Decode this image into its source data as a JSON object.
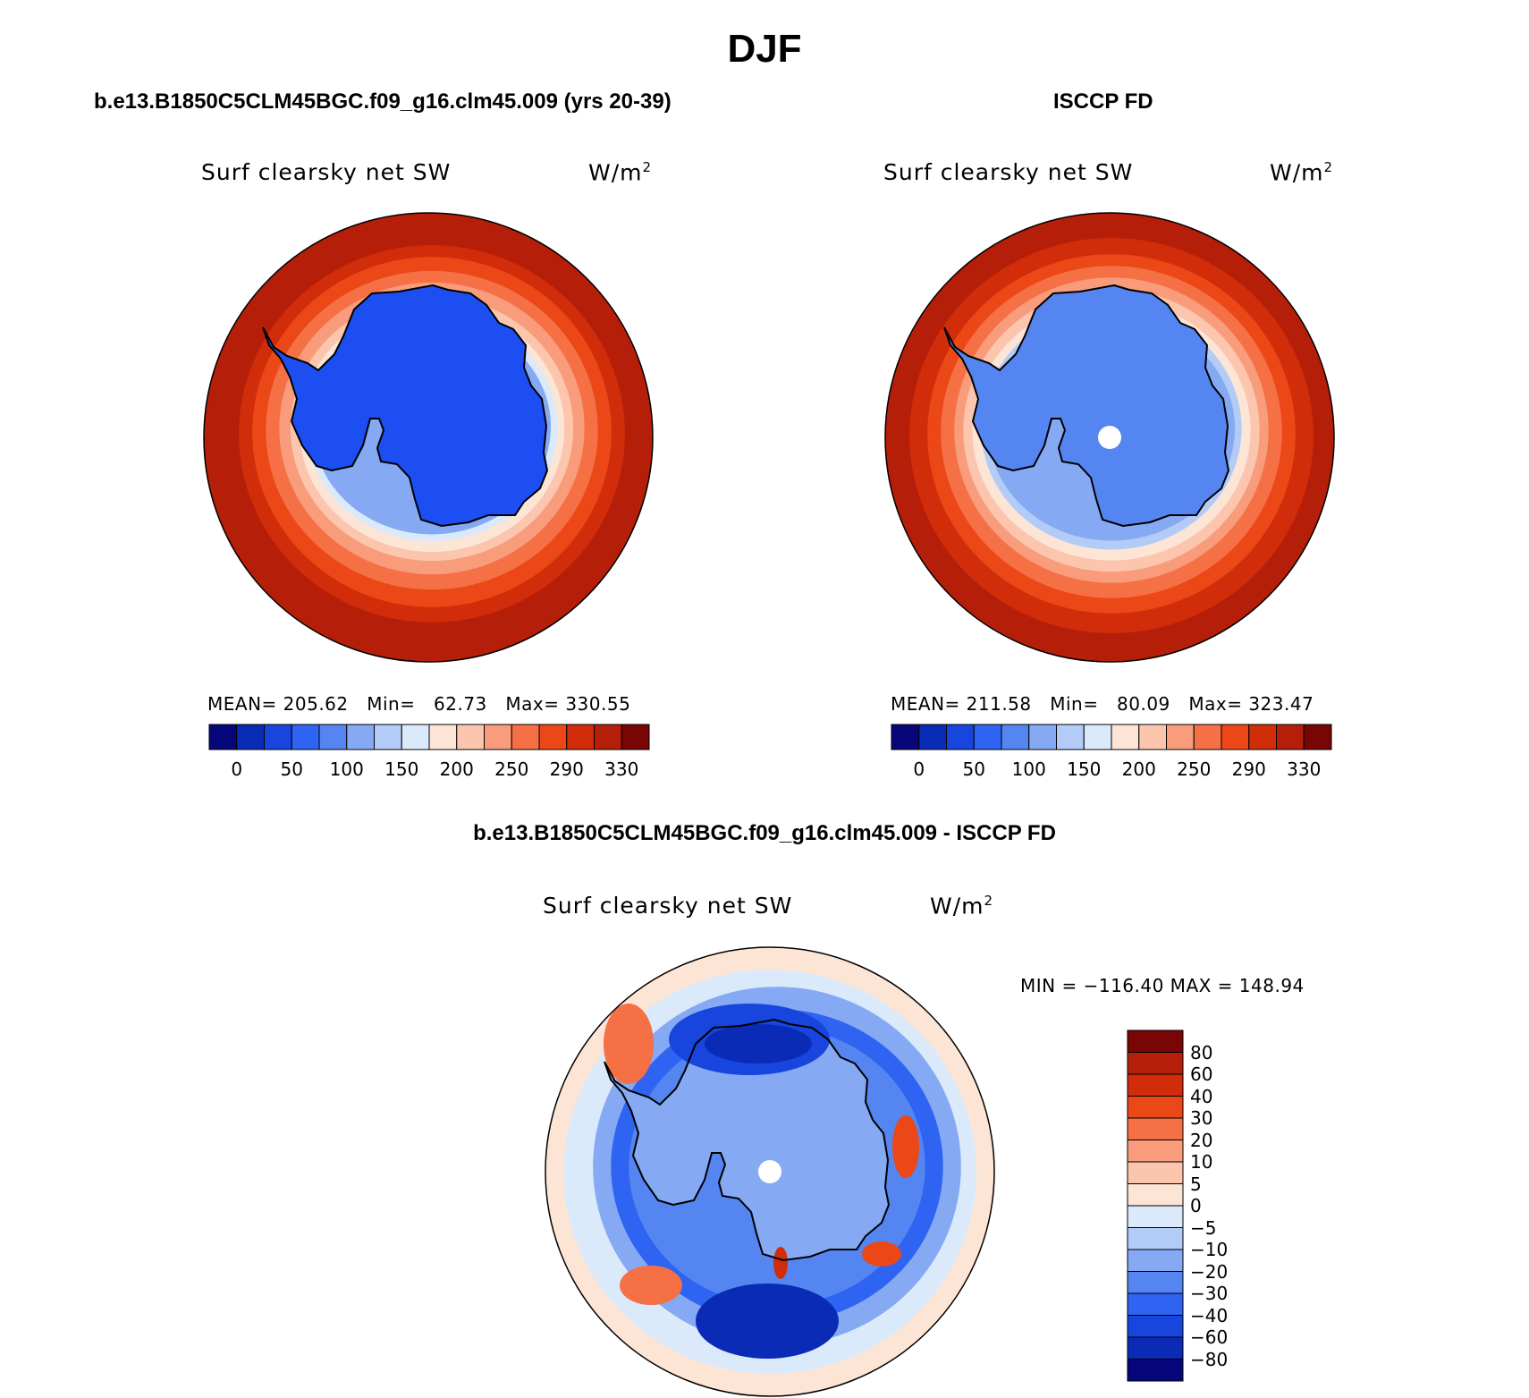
{
  "figure": {
    "title": "DJF"
  },
  "panels": [
    {
      "title": "b.e13.B1850C5CLM45BGC.f09_g16.clm45.009 (yrs 20-39)",
      "variable": "Surf clearsky net SW",
      "units": "W/m",
      "units_sup": "2",
      "stats_text": "MEAN= 205.62   Min=   62.73   Max= 330.55"
    },
    {
      "title": "ISCCP FD",
      "variable": "Surf clearsky net SW",
      "units": "W/m",
      "units_sup": "2",
      "stats_text": "MEAN= 211.58   Min=   80.09   Max= 323.47"
    },
    {
      "title": "b.e13.B1850C5CLM45BGC.f09_g16.clm45.009 - ISCCP FD",
      "variable": "Surf clearsky net SW",
      "units": "W/m",
      "units_sup": "2",
      "stats_text": "MIN = −116.40 MAX = 148.94"
    }
  ],
  "chart_data": [
    {
      "type": "heatmap",
      "projection": "south-polar-stereographic",
      "title": "b.e13.B1850C5CLM45BGC.f09_g16.clm45.009 (yrs 20-39)",
      "variable": "Surf clearsky net SW",
      "units": "W/m2",
      "mean": 205.62,
      "min": 62.73,
      "max": 330.55,
      "colorbar_ticks": [
        "0",
        "50",
        "100",
        "150",
        "200",
        "250",
        "290",
        "330"
      ],
      "colorbar_colors": [
        "#06067a",
        "#0a2bb6",
        "#1745dd",
        "#2f64f2",
        "#5585f0",
        "#86a9f4",
        "#b3cbf7",
        "#daeafb",
        "#fde5d6",
        "#fbc6ad",
        "#f89c7c",
        "#f57045",
        "#ec4716",
        "#d22d0a",
        "#b51f09",
        "#7a0505"
      ]
    },
    {
      "type": "heatmap",
      "projection": "south-polar-stereographic",
      "title": "ISCCP FD",
      "variable": "Surf clearsky net SW",
      "units": "W/m2",
      "mean": 211.58,
      "min": 80.09,
      "max": 323.47,
      "colorbar_ticks": [
        "0",
        "50",
        "100",
        "150",
        "200",
        "250",
        "290",
        "330"
      ],
      "colorbar_colors": [
        "#06067a",
        "#0a2bb6",
        "#1745dd",
        "#2f64f2",
        "#5585f0",
        "#86a9f4",
        "#b3cbf7",
        "#daeafb",
        "#fde5d6",
        "#fbc6ad",
        "#f89c7c",
        "#f57045",
        "#ec4716",
        "#d22d0a",
        "#b51f09",
        "#7a0505"
      ]
    },
    {
      "type": "heatmap",
      "projection": "south-polar-stereographic",
      "title": "b.e13.B1850C5CLM45BGC.f09_g16.clm45.009 - ISCCP FD",
      "variable": "Surf clearsky net SW",
      "units": "W/m2",
      "min": -116.4,
      "max": 148.94,
      "colorbar_ticks": [
        "80",
        "60",
        "40",
        "30",
        "20",
        "10",
        "5",
        "0",
        "−5",
        "−10",
        "−20",
        "−30",
        "−40",
        "−60",
        "−80"
      ],
      "colorbar_colors": [
        "#7a0505",
        "#b51f09",
        "#d22d0a",
        "#ec4716",
        "#f57045",
        "#f89c7c",
        "#fbc6ad",
        "#fde5d6",
        "#daeafb",
        "#b3cbf7",
        "#86a9f4",
        "#5585f0",
        "#2f64f2",
        "#1745dd",
        "#0a2bb6",
        "#06067a"
      ]
    }
  ]
}
